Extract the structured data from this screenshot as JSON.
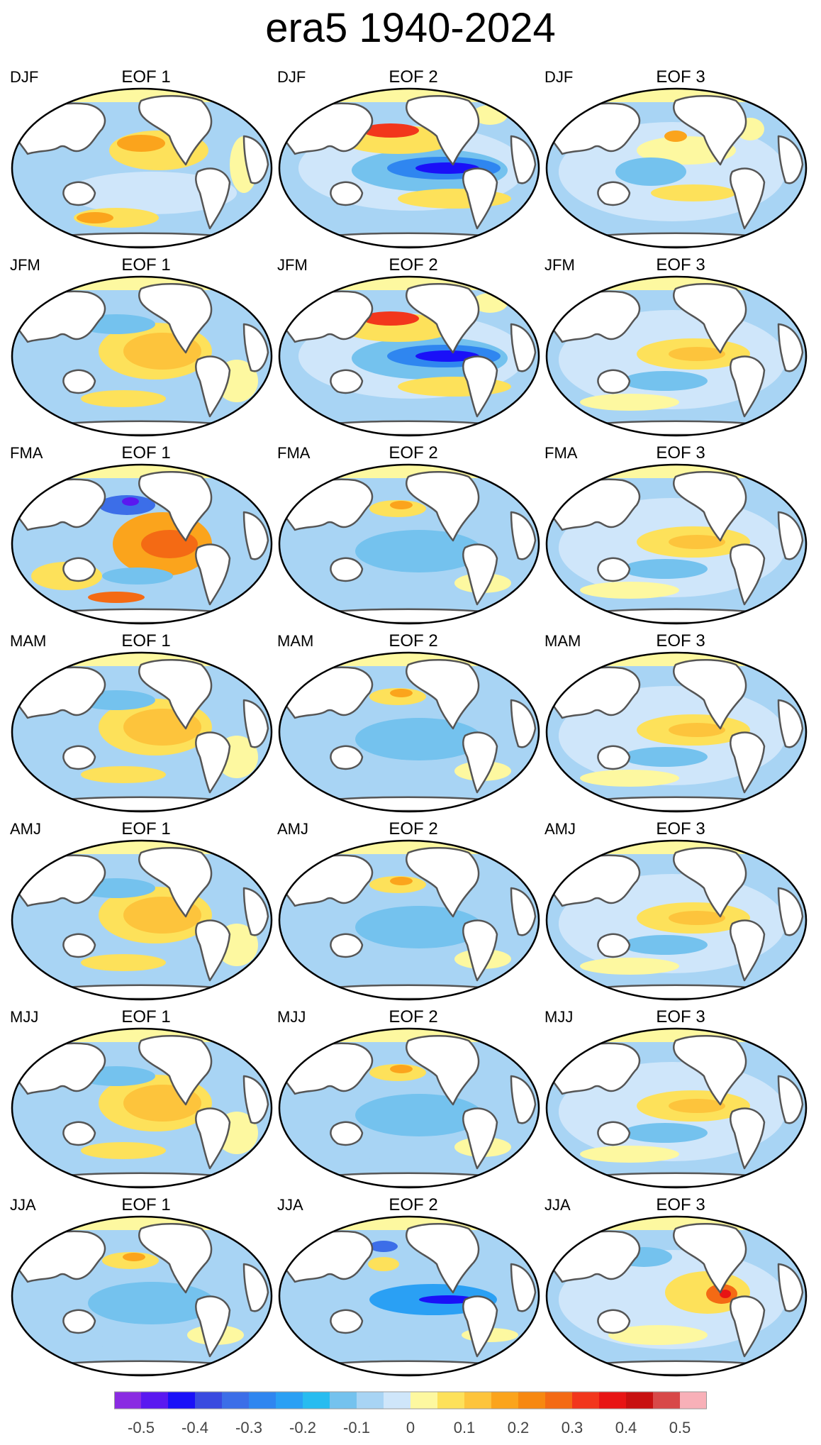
{
  "title": "era5 1940-2024",
  "panels": [
    {
      "season": "DJF",
      "eof": "EOF 1",
      "pattern": "pdo"
    },
    {
      "season": "DJF",
      "eof": "EOF 2",
      "pattern": "enso-neg"
    },
    {
      "season": "DJF",
      "eof": "EOF 3",
      "pattern": "mixed"
    },
    {
      "season": "JFM",
      "eof": "EOF 1",
      "pattern": "enso"
    },
    {
      "season": "JFM",
      "eof": "EOF 2",
      "pattern": "enso-neg"
    },
    {
      "season": "JFM",
      "eof": "EOF 3",
      "pattern": "enso-weak"
    },
    {
      "season": "FMA",
      "eof": "EOF 1",
      "pattern": "enso-strong"
    },
    {
      "season": "FMA",
      "eof": "EOF 2",
      "pattern": "cool"
    },
    {
      "season": "FMA",
      "eof": "EOF 3",
      "pattern": "enso-weak"
    },
    {
      "season": "MAM",
      "eof": "EOF 1",
      "pattern": "enso"
    },
    {
      "season": "MAM",
      "eof": "EOF 2",
      "pattern": "cool"
    },
    {
      "season": "MAM",
      "eof": "EOF 3",
      "pattern": "enso-weak"
    },
    {
      "season": "AMJ",
      "eof": "EOF 1",
      "pattern": "enso"
    },
    {
      "season": "AMJ",
      "eof": "EOF 2",
      "pattern": "cool"
    },
    {
      "season": "AMJ",
      "eof": "EOF 3",
      "pattern": "enso-weak"
    },
    {
      "season": "MJJ",
      "eof": "EOF 1",
      "pattern": "enso"
    },
    {
      "season": "MJJ",
      "eof": "EOF 2",
      "pattern": "cool"
    },
    {
      "season": "MJJ",
      "eof": "EOF 3",
      "pattern": "enso-weak"
    },
    {
      "season": "JJA",
      "eof": "EOF 1",
      "pattern": "cool"
    },
    {
      "season": "JJA",
      "eof": "EOF 2",
      "pattern": "cool-deep"
    },
    {
      "season": "JJA",
      "eof": "EOF 3",
      "pattern": "coastal"
    }
  ],
  "colorbar": {
    "colors": [
      "#8a2be2",
      "#5a18f0",
      "#1a10f8",
      "#3a4ae0",
      "#3c6ee8",
      "#2f86f0",
      "#2aa0f4",
      "#27bcf0",
      "#74c2ee",
      "#a8d4f4",
      "#cfe6fa",
      "#fdf8a0",
      "#fde15a",
      "#fdc43c",
      "#fba41c",
      "#f78810",
      "#f46a14",
      "#f2361c",
      "#e81414",
      "#c81010",
      "#d84848",
      "#f8b0b8"
    ],
    "labels": [
      "-0.5",
      "-0.4",
      "-0.3",
      "-0.2",
      "-0.1",
      "0",
      "0.1",
      "0.2",
      "0.3",
      "0.4",
      "0.5"
    ]
  }
}
